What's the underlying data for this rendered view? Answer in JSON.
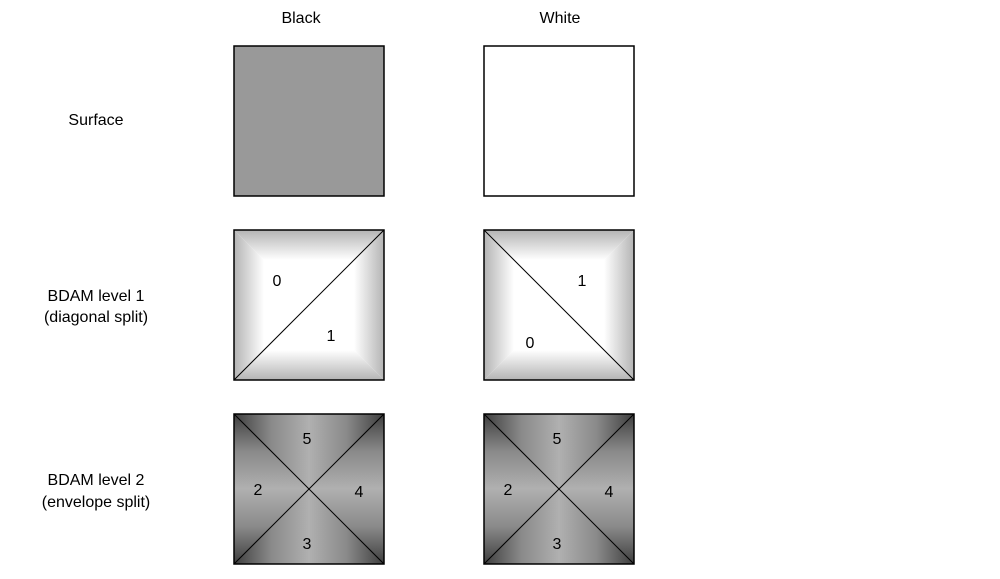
{
  "columns": {
    "black": "Black",
    "white": "White"
  },
  "rows": {
    "surface": {
      "label": "Surface"
    },
    "level1": {
      "label_line1": "BDAM level 1",
      "label_line2": "(diagonal split)"
    },
    "level2": {
      "label_line1": "BDAM level  2",
      "label_line2": "(envelope split)"
    }
  },
  "tiles": {
    "surface_black": {
      "fill": "#999999"
    },
    "surface_white": {
      "fill": "#ffffff"
    },
    "level1_black": {
      "labels": [
        "0",
        "1"
      ]
    },
    "level1_white": {
      "labels": [
        "1",
        "0"
      ]
    },
    "level2_black": {
      "labels": [
        "5",
        "2",
        "4",
        "3"
      ]
    },
    "level2_white": {
      "labels": [
        "5",
        "2",
        "4",
        "3"
      ]
    }
  },
  "colors": {
    "outline": "#000000",
    "level1_center": "#ffffff",
    "level1_edge": "#b4b4b4",
    "level2_light": "#aaaaaa",
    "level2_dark": "#4a4a4a"
  }
}
